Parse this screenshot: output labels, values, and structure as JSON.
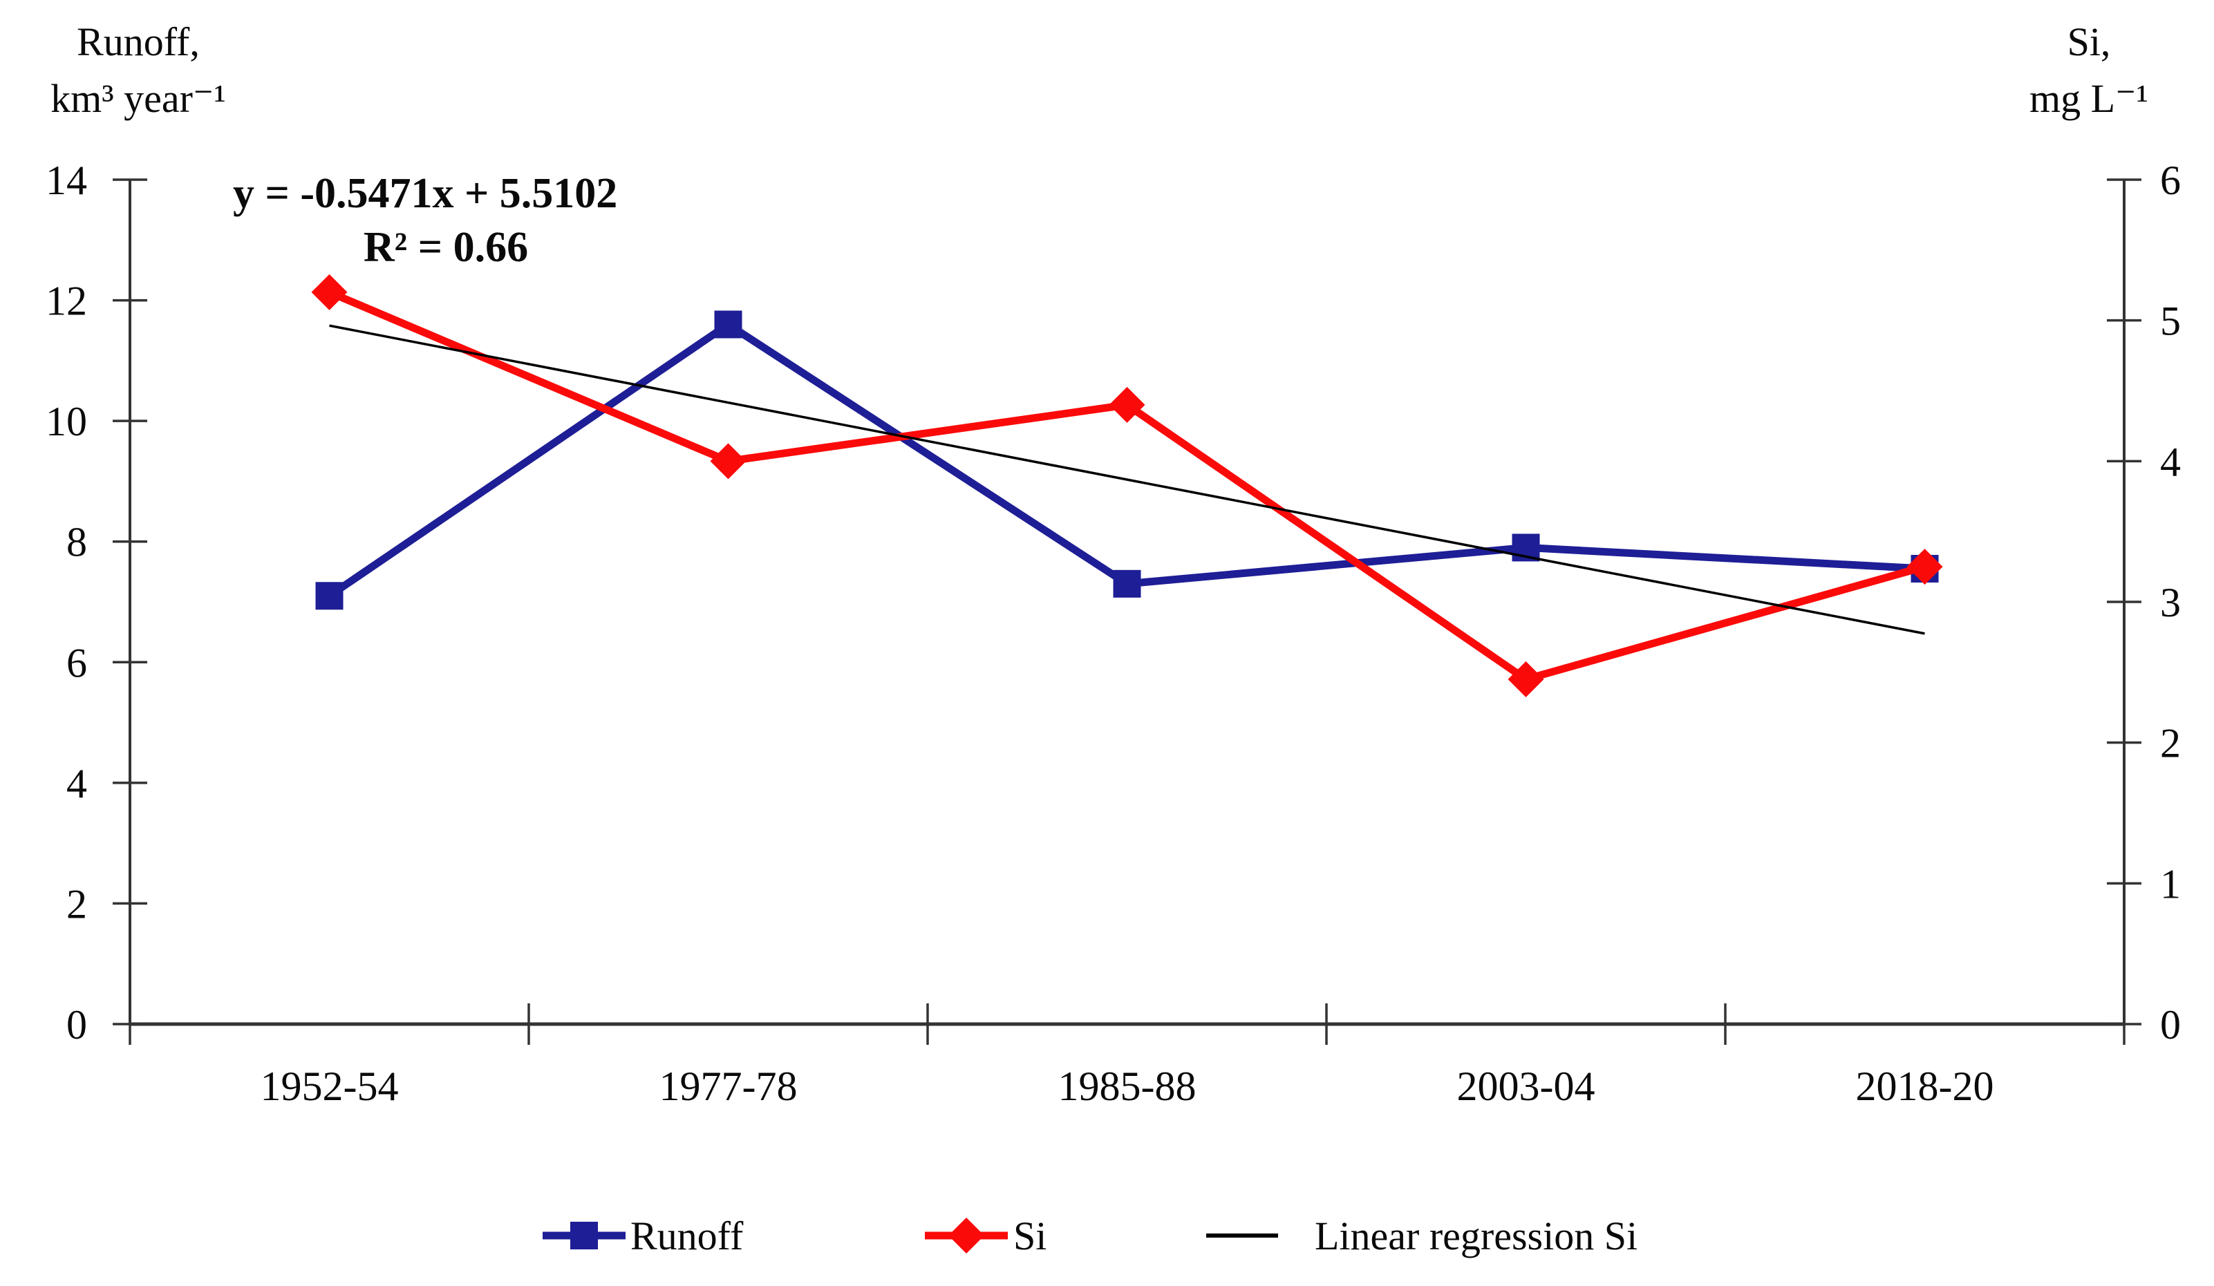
{
  "chart_data": {
    "type": "line",
    "title": "",
    "categories": [
      "1952-54",
      "1977-78",
      "1985-88",
      "2003-04",
      "2018-20"
    ],
    "series": [
      {
        "name": "Runoff",
        "axis": "left",
        "marker": "square",
        "color": "#1e1e96",
        "values": [
          7.1,
          11.6,
          7.3,
          7.9,
          7.55
        ]
      },
      {
        "name": "Si",
        "axis": "right",
        "marker": "diamond",
        "color": "#fb0a0a",
        "values": [
          5.2,
          4.0,
          4.4,
          2.45,
          3.25
        ]
      }
    ],
    "regression": {
      "name": "Linear regression Si",
      "axis": "right",
      "color": "#000000",
      "slope": -0.5471,
      "intercept": 5.5102,
      "r2": 0.66,
      "equation_text": "y = -0.5471x + 5.5102",
      "r2_text": "R² = 0.66"
    },
    "left_axis": {
      "title_line1": "Runoff,",
      "title_line2": "km³ year⁻¹",
      "min": 0,
      "max": 14,
      "ticks": [
        0,
        2,
        4,
        6,
        8,
        10,
        12,
        14
      ]
    },
    "right_axis": {
      "title_line1": "Si,",
      "title_line2": "mg L⁻¹",
      "min": 0,
      "max": 6,
      "ticks": [
        0,
        1,
        2,
        3,
        4,
        5,
        6
      ]
    },
    "grid": false,
    "legend_position": "bottom"
  },
  "legend": {
    "items": [
      {
        "label": "Runoff"
      },
      {
        "label": "Si"
      },
      {
        "label": "Linear regression Si"
      }
    ]
  },
  "colors": {
    "axis": "#333333",
    "text": "#0a0a0a"
  }
}
